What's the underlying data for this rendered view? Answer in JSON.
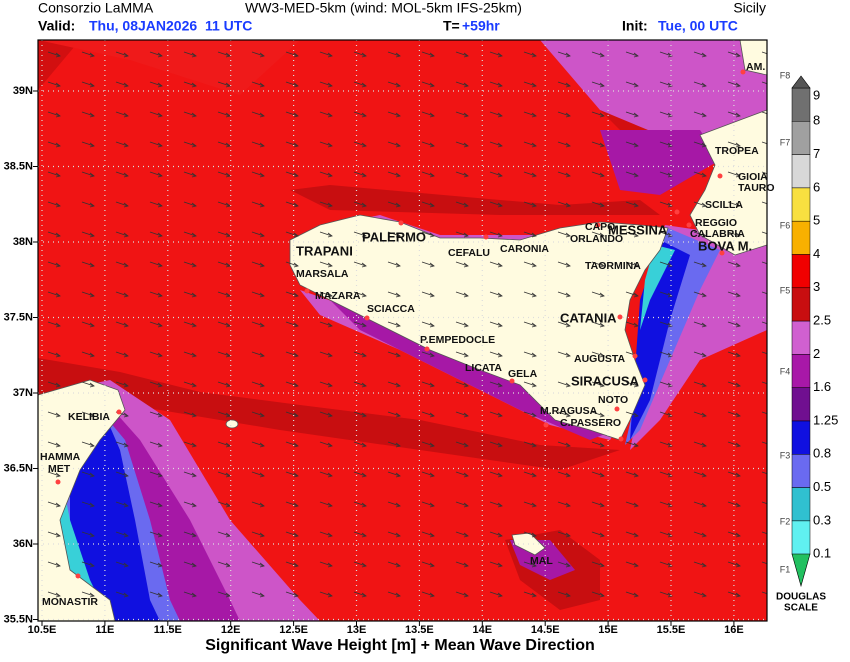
{
  "header": {
    "producer": "Consorzio LaMMA",
    "model": "WW3-MED-5km (wind: MOL-5km IFS-25km)",
    "region": "Sicily",
    "valid_label": "Valid:",
    "valid_value": "Thu, 08JAN2026  11 UTC",
    "step_label": "T=",
    "step_value": "+59hr",
    "init_label": "Init:",
    "init_value": "Tue, 00 UTC"
  },
  "axes": {
    "lon_ticks": [
      "10.5E",
      "11E",
      "11.5E",
      "12E",
      "12.5E",
      "13E",
      "13.5E",
      "14E",
      "14.5E",
      "15E",
      "15.5E",
      "16E"
    ],
    "lat_ticks": [
      "39N",
      "38.5N",
      "38N",
      "37.5N",
      "37N",
      "36.5N",
      "36N",
      "35.5N"
    ]
  },
  "places": [
    "AM.",
    "TROPEA",
    "GIOIA",
    "TAURO",
    "SCILLA",
    "REGGIO",
    "CALABRIA",
    "BOVA M.",
    "MESSINA",
    "CAPO",
    "ORLANDO",
    "CARONIA",
    "CEFALU",
    "PALERMO",
    "TRAPANI",
    "MARSALA",
    "MAZARA",
    "SCIACCA",
    "P.EMPEDOCLE",
    "LICATA",
    "GELA",
    "CATANIA",
    "TAORMINA",
    "AUGUSTA",
    "SIRACUSA",
    "NOTO",
    "M.RAGUSA",
    "C.PASSERO",
    "KELIBIA",
    "HAMMA",
    "MET",
    "MONASTIR",
    "MAL"
  ],
  "legend": {
    "levels": [
      "9",
      "8",
      "7",
      "6",
      "5",
      "4",
      "3",
      "2.5",
      "2",
      "1.6",
      "1.25",
      "0.8",
      "0.5",
      "0.3",
      "0.1"
    ],
    "forces": [
      "F8",
      "F7",
      "F6",
      "F5",
      "F4",
      "F3",
      "F2",
      "F1"
    ],
    "scale_title": [
      "DOUGLAS",
      "SCALE"
    ]
  },
  "footer": "Significant Wave Height [m] + Mean Wave Direction"
}
